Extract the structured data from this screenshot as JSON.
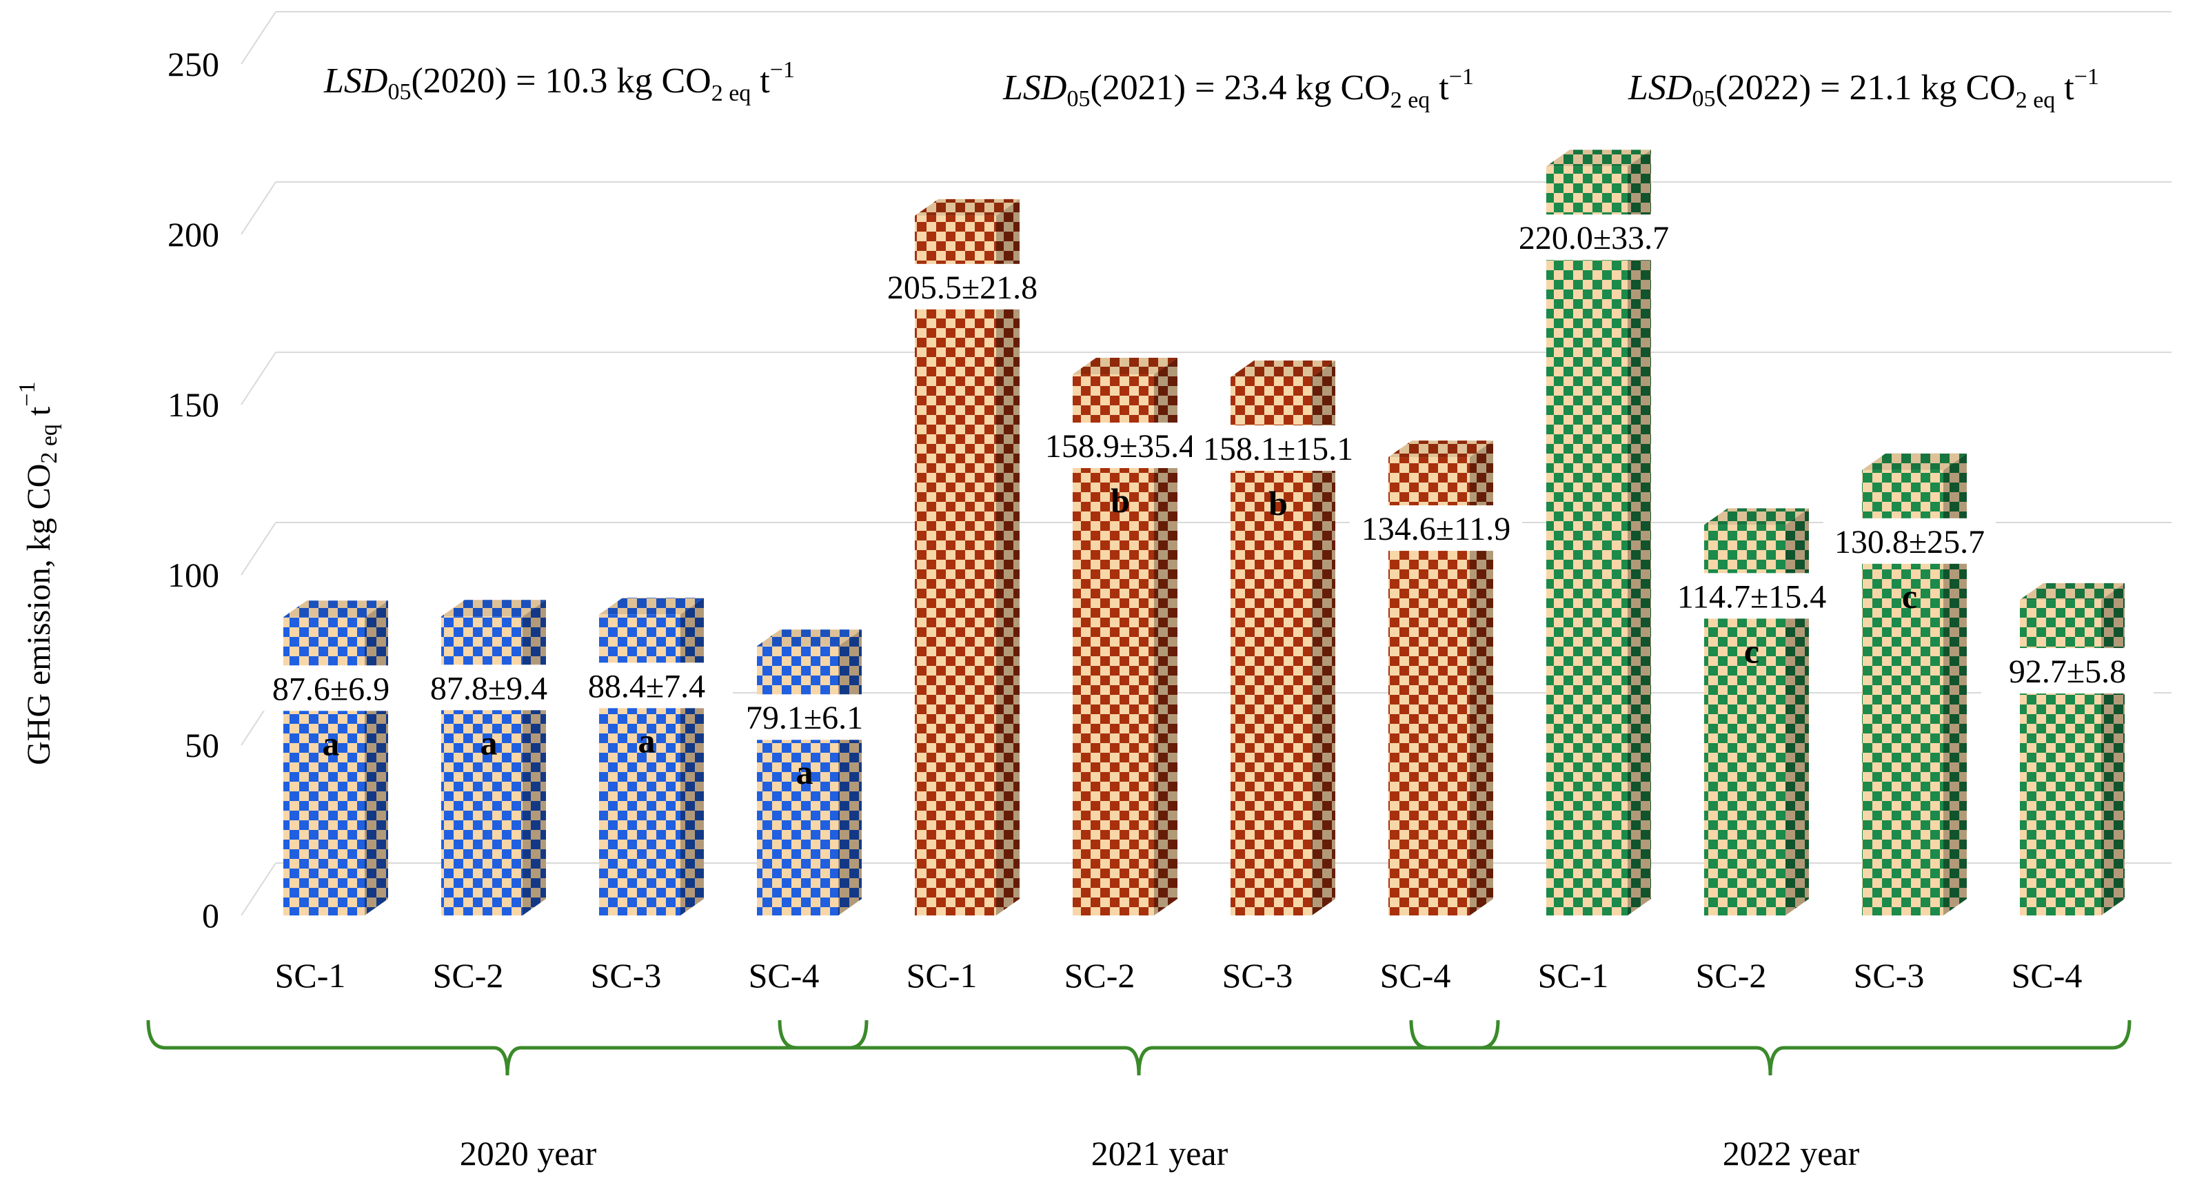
{
  "chart_data": {
    "type": "bar",
    "style": "3d-clustered",
    "ylabel": "GHG emission,  kg CO",
    "ylabel_sub": "2 eq",
    "ylabel_tail": " t",
    "ylabel_sup": "−1",
    "ylim": [
      0,
      250
    ],
    "yticks": [
      "0",
      "50",
      "100",
      "150",
      "200",
      "250"
    ],
    "grid": true,
    "groups": [
      {
        "year": "2020 year",
        "color": "#1f5fe0",
        "lsd": {
          "prefix": "LSD",
          "sub": "05",
          "text": "(2020) = 10.3 kg CO",
          "sub2": "2 eq",
          "unit": " t",
          "sup": "−1"
        },
        "bars": [
          {
            "category": "SC-1",
            "value": 87.6,
            "label": "87.6±6.9",
            "letter": "a"
          },
          {
            "category": "SC-2",
            "value": 87.8,
            "label": "87.8±9.4",
            "letter": "a"
          },
          {
            "category": "SC-3",
            "value": 88.4,
            "label": "88.4±7.4",
            "letter": "a"
          },
          {
            "category": "SC-4",
            "value": 79.1,
            "label": "79.1±6.1",
            "letter": "a"
          }
        ]
      },
      {
        "year": "2021 year",
        "color": "#a8300c",
        "lsd": {
          "prefix": "LSD",
          "sub": "05",
          "text": "(2021) = 23.4 kg CO",
          "sub2": "2 eq",
          "unit": " t",
          "sup": "−1"
        },
        "bars": [
          {
            "category": "SC-1",
            "value": 205.5,
            "label": "205.5±21.8",
            "letter": ""
          },
          {
            "category": "SC-2",
            "value": 158.9,
            "label": "158.9±35.4",
            "letter": "b"
          },
          {
            "category": "SC-3",
            "value": 158.1,
            "label": "158.1±15.1",
            "letter": "b"
          },
          {
            "category": "SC-4",
            "value": 134.6,
            "label": "134.6±11.9",
            "letter": ""
          }
        ]
      },
      {
        "year": "2022 year",
        "color": "#1b8a4a",
        "lsd": {
          "prefix": "LSD",
          "sub": "05",
          "text": "(2022) = 21.1 kg CO",
          "sub2": "2 eq",
          "unit": " t",
          "sup": "−1"
        },
        "bars": [
          {
            "category": "SC-1",
            "value": 220.0,
            "label": "220.0±33.7",
            "letter": ""
          },
          {
            "category": "SC-2",
            "value": 114.7,
            "label": "114.7±15.4",
            "letter": "c"
          },
          {
            "category": "SC-3",
            "value": 130.8,
            "label": "130.8±25.7",
            "letter": "c"
          },
          {
            "category": "SC-4",
            "value": 92.7,
            "label": "92.7±5.8",
            "letter": ""
          }
        ]
      }
    ],
    "bracket_color": "#3a8a2a"
  }
}
